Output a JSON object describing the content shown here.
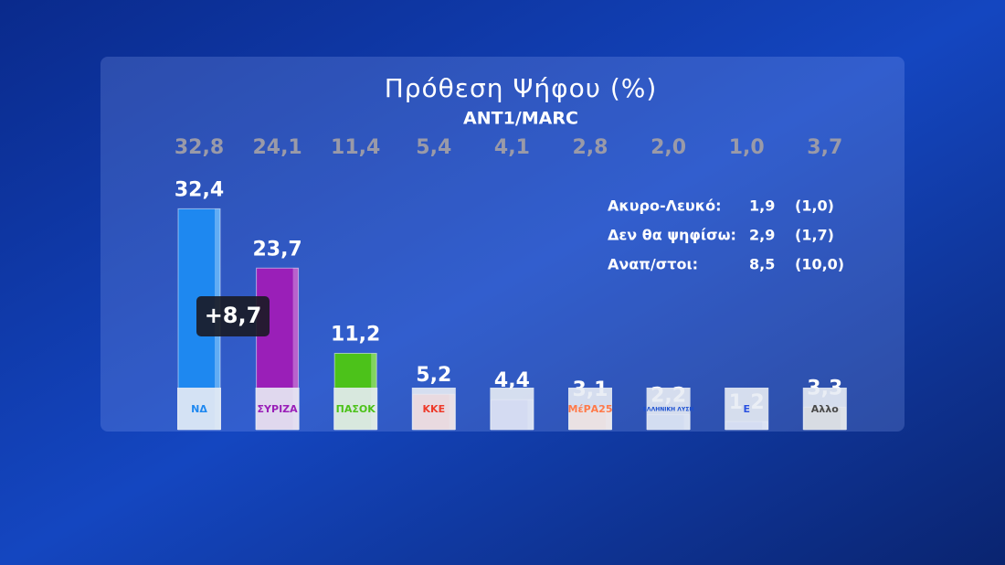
{
  "chart_data": {
    "type": "bar",
    "title": "Πρόθεση Ψήφου (%)",
    "subtitle": "ANT1/MARC",
    "categories": [
      "ΝΔ",
      "ΣΥΡΙΖΑ",
      "ΠΑΣΟΚ",
      "ΚΚΕ",
      null,
      "ΜέΡΑ25",
      "ΕΛΛΗΝΙΚΗ ΛΥΣΗ",
      "Ε",
      "Αλλο"
    ],
    "values": [
      32.4,
      23.7,
      11.2,
      5.2,
      4.4,
      3.1,
      2.2,
      1.2,
      3.3
    ],
    "value_labels": [
      "32,4",
      "23,7",
      "11,2",
      "5,2",
      "4,4",
      "3,1",
      "2,2",
      "1,2",
      "3,3"
    ],
    "previous_values": [
      32.8,
      24.1,
      11.4,
      5.4,
      4.1,
      2.8,
      2.0,
      1.0,
      3.7
    ],
    "previous_value_labels": [
      "32,8",
      "24,1",
      "11,4",
      "5,4",
      "4,1",
      "2,8",
      "2,0",
      "1,0",
      "3,7"
    ],
    "colors": [
      "#1e88f0",
      "#9a1fb8",
      "#4cc21a",
      "#ee3a2a",
      "#1f3fe0",
      "#ff7a4a",
      "#1a4fd0",
      "#2a50e0",
      "#4a4a4a"
    ],
    "ylim": [
      0,
      35
    ],
    "annotation": "+8,7",
    "notes": [
      {
        "label": "Ακυρο-Λευκό:",
        "value": "1,9",
        "previous": "(1,0)"
      },
      {
        "label": "Δεν θα ψηφίσω:",
        "value": "2,9",
        "previous": "(1,7)"
      },
      {
        "label": "Αναπ/στοι:",
        "value": "8,5",
        "previous": "(10,0)"
      }
    ]
  }
}
